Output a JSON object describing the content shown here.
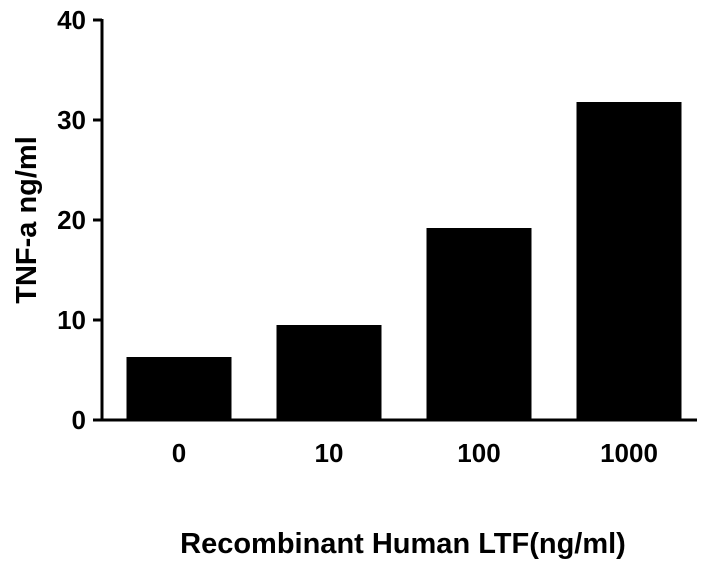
{
  "chart_data": {
    "type": "bar",
    "title": "",
    "xlabel": "Recombinant Human LTF(ng/ml)",
    "ylabel": "TNF-a ng/ml",
    "categories": [
      "0",
      "10",
      "100",
      "1000"
    ],
    "values": [
      6.3,
      9.5,
      19.2,
      31.8
    ],
    "ylim": [
      0,
      40
    ],
    "yticks": [
      "0",
      "10",
      "20",
      "30",
      "40"
    ],
    "grid": false,
    "legend": "none",
    "bar_color": "#000000",
    "axis_color": "#000000"
  }
}
